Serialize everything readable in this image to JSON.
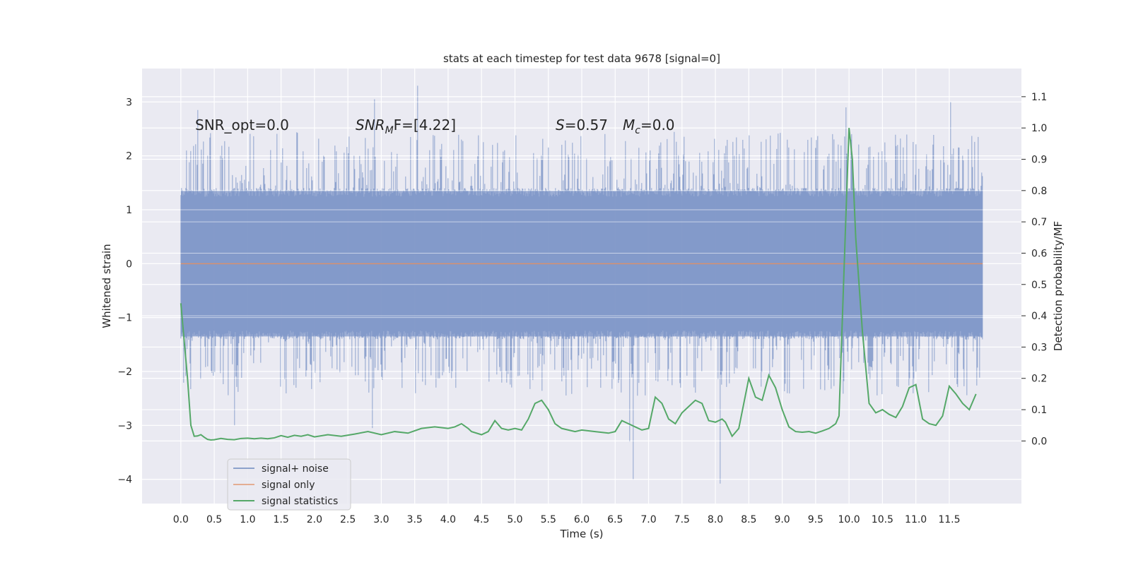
{
  "chart_data": {
    "type": "line",
    "title": "stats at each timestep for test data 9678 [signal=0]",
    "xlabel": "Time (s)",
    "ylabel_left": "Whitened strain",
    "ylabel_right": "Detection probability/MF",
    "xlim": [
      -0.58,
      12.58
    ],
    "ylim_left": [
      -4.45,
      3.62
    ],
    "ylim_right": [
      -0.2,
      1.19
    ],
    "grid": true,
    "x_ticks": [
      "0.0",
      "0.5",
      "1.0",
      "1.5",
      "2.0",
      "2.5",
      "3.0",
      "3.5",
      "4.0",
      "4.5",
      "5.0",
      "5.5",
      "6.0",
      "6.5",
      "7.0",
      "7.5",
      "8.0",
      "8.5",
      "9.0",
      "9.5",
      "10.0",
      "10.5",
      "11.0",
      "11.5"
    ],
    "y_left_ticks": [
      "3",
      "2",
      "1",
      "0",
      "−1",
      "−2",
      "−3",
      "−4"
    ],
    "y_right_ticks": [
      "1.1",
      "1.0",
      "0.9",
      "0.8",
      "0.7",
      "0.6",
      "0.5",
      "0.4",
      "0.3",
      "0.2",
      "0.1",
      "0.0"
    ],
    "annotations": [
      {
        "id": "snr-opt",
        "text": "SNR_opt=0.0"
      },
      {
        "id": "snr-mf",
        "text": "SNR",
        "sub": "M",
        "rest": "F=[4.22]"
      },
      {
        "id": "s-value",
        "text": "S",
        "rest": "=0.57"
      },
      {
        "id": "mc-value",
        "text": "M",
        "sub": "c",
        "rest": "=0.0"
      }
    ],
    "legend": {
      "position": "lower-left",
      "entries": [
        {
          "name": "signal+ noise",
          "color": "#4c72b0"
        },
        {
          "name": "signal only",
          "color": "#dd8452"
        },
        {
          "name": "signal statistics",
          "color": "#55a868"
        }
      ]
    },
    "series": [
      {
        "name": "signal+ noise",
        "axis": "left",
        "color": "#4c72b0",
        "style": "noise",
        "x_range": [
          0.0,
          12.0
        ],
        "typical_amplitude": 1.35,
        "extremes": [
          {
            "x": 3.54,
            "y": 3.3
          },
          {
            "x": 2.9,
            "y": 3.05
          },
          {
            "x": 11.52,
            "y": 3.0
          },
          {
            "x": 9.95,
            "y": 2.9
          },
          {
            "x": 0.25,
            "y": 2.85
          },
          {
            "x": 6.77,
            "y": -4.0
          },
          {
            "x": 8.07,
            "y": -4.08
          },
          {
            "x": 6.72,
            "y": -3.3
          },
          {
            "x": 2.87,
            "y": -3.05
          },
          {
            "x": 0.8,
            "y": -3.0
          }
        ]
      },
      {
        "name": "signal only",
        "axis": "left",
        "color": "#dd8452",
        "x": [
          0.0,
          12.0
        ],
        "y": [
          0.0,
          0.0
        ]
      },
      {
        "name": "signal statistics",
        "axis": "right",
        "color": "#55a868",
        "x": [
          0.0,
          0.1,
          0.15,
          0.2,
          0.25,
          0.3,
          0.35,
          0.4,
          0.45,
          0.5,
          0.6,
          0.7,
          0.8,
          0.9,
          1.0,
          1.1,
          1.2,
          1.3,
          1.4,
          1.5,
          1.6,
          1.7,
          1.8,
          1.9,
          2.0,
          2.2,
          2.4,
          2.6,
          2.8,
          3.0,
          3.2,
          3.4,
          3.6,
          3.8,
          4.0,
          4.1,
          4.2,
          4.3,
          4.35,
          4.5,
          4.6,
          4.7,
          4.8,
          4.9,
          5.0,
          5.1,
          5.2,
          5.3,
          5.4,
          5.5,
          5.6,
          5.7,
          5.9,
          6.0,
          6.2,
          6.4,
          6.5,
          6.6,
          6.7,
          6.8,
          6.9,
          7.0,
          7.1,
          7.2,
          7.3,
          7.4,
          7.5,
          7.6,
          7.7,
          7.8,
          7.9,
          8.0,
          8.1,
          8.15,
          8.25,
          8.35,
          8.5,
          8.6,
          8.7,
          8.8,
          8.9,
          9.0,
          9.1,
          9.2,
          9.3,
          9.4,
          9.5,
          9.6,
          9.7,
          9.8,
          9.85,
          9.95,
          10.0,
          10.05,
          10.1,
          10.2,
          10.3,
          10.4,
          10.5,
          10.6,
          10.7,
          10.8,
          10.9,
          11.0,
          11.1,
          11.2,
          11.3,
          11.4,
          11.5,
          11.6,
          11.7,
          11.8,
          11.9
        ],
        "y": [
          0.44,
          0.2,
          0.05,
          0.015,
          0.016,
          0.02,
          0.012,
          0.005,
          0.003,
          0.004,
          0.008,
          0.005,
          0.004,
          0.008,
          0.009,
          0.007,
          0.009,
          0.007,
          0.01,
          0.017,
          0.012,
          0.018,
          0.015,
          0.02,
          0.013,
          0.02,
          0.015,
          0.022,
          0.03,
          0.02,
          0.03,
          0.025,
          0.04,
          0.045,
          0.04,
          0.045,
          0.055,
          0.04,
          0.03,
          0.02,
          0.03,
          0.065,
          0.04,
          0.035,
          0.04,
          0.035,
          0.07,
          0.12,
          0.13,
          0.1,
          0.055,
          0.04,
          0.03,
          0.035,
          0.03,
          0.025,
          0.03,
          0.065,
          0.055,
          0.045,
          0.035,
          0.04,
          0.14,
          0.12,
          0.07,
          0.055,
          0.09,
          0.11,
          0.13,
          0.12,
          0.065,
          0.06,
          0.07,
          0.06,
          0.015,
          0.04,
          0.2,
          0.14,
          0.13,
          0.21,
          0.17,
          0.1,
          0.045,
          0.03,
          0.028,
          0.03,
          0.025,
          0.032,
          0.04,
          0.055,
          0.08,
          0.7,
          1.0,
          0.9,
          0.65,
          0.35,
          0.12,
          0.09,
          0.1,
          0.085,
          0.075,
          0.11,
          0.17,
          0.18,
          0.07,
          0.055,
          0.05,
          0.08,
          0.175,
          0.15,
          0.12,
          0.1,
          0.15
        ]
      }
    ]
  }
}
